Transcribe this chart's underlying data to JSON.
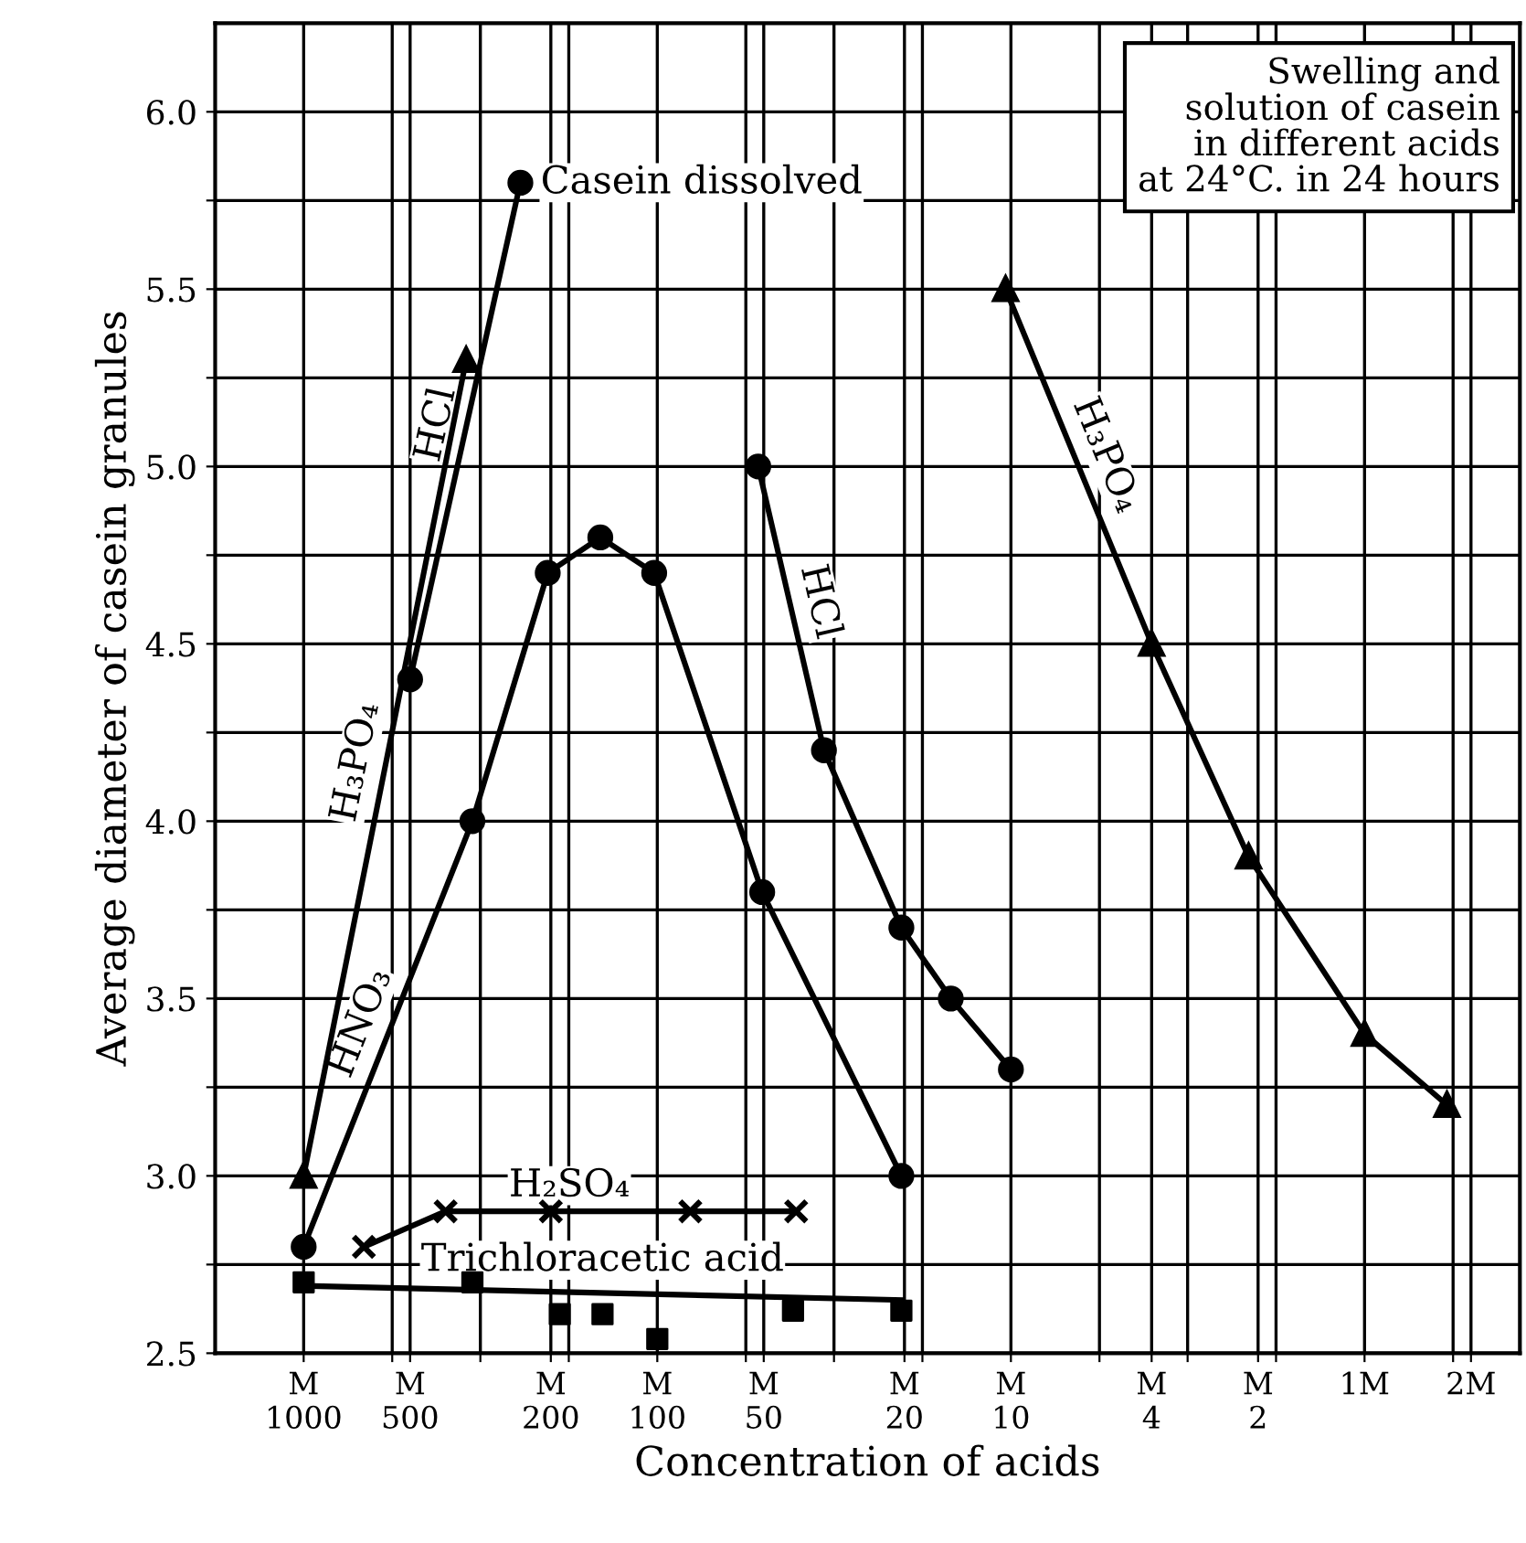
{
  "chart_data": {
    "type": "line",
    "title": "Swelling and\nsolution of casein\nin different acids\nat 24°C. in 24 hours",
    "xlabel": "Concentration of acids",
    "ylabel": "Average diameter of casein granules",
    "log": "x",
    "grid": true,
    "legend": false,
    "xlim": [
      0.000562,
      2.75
    ],
    "ylim": [
      2.5,
      6.25
    ],
    "xticks": [
      {
        "value": 0.001,
        "label": "M\n1000"
      },
      {
        "value": 0.00178,
        "label": null
      },
      {
        "value": 0.002,
        "label": "M\n500"
      },
      {
        "value": 0.00316,
        "label": null
      },
      {
        "value": 0.005,
        "label": "M\n200"
      },
      {
        "value": 0.00562,
        "label": null
      },
      {
        "value": 0.01,
        "label": "M\n100"
      },
      {
        "value": 0.0178,
        "label": null
      },
      {
        "value": 0.02,
        "label": "M\n50"
      },
      {
        "value": 0.0316,
        "label": null
      },
      {
        "value": 0.05,
        "label": "M\n20"
      },
      {
        "value": 0.0562,
        "label": null
      },
      {
        "value": 0.1,
        "label": "M\n10"
      },
      {
        "value": 0.178,
        "label": null
      },
      {
        "value": 0.25,
        "label": "M\n4"
      },
      {
        "value": 0.316,
        "label": null
      },
      {
        "value": 0.5,
        "label": "M\n2"
      },
      {
        "value": 0.562,
        "label": null
      },
      {
        "value": 1,
        "label": "1M"
      },
      {
        "value": 1.78,
        "label": null
      },
      {
        "value": 2,
        "label": "2M"
      }
    ],
    "yticks": [
      {
        "value": 2.5,
        "label": "2.5"
      },
      {
        "value": 2.75,
        "label": null
      },
      {
        "value": 3.0,
        "label": "3.0"
      },
      {
        "value": 3.25,
        "label": null
      },
      {
        "value": 3.5,
        "label": "3.5"
      },
      {
        "value": 3.75,
        "label": null
      },
      {
        "value": 4.0,
        "label": "4.0"
      },
      {
        "value": 4.25,
        "label": null
      },
      {
        "value": 4.5,
        "label": "4.5"
      },
      {
        "value": 4.75,
        "label": null
      },
      {
        "value": 5.0,
        "label": "5.0"
      },
      {
        "value": 5.25,
        "label": null
      },
      {
        "value": 5.5,
        "label": "5.5"
      },
      {
        "value": 5.75,
        "label": null
      },
      {
        "value": 6.0,
        "label": "6.0"
      }
    ],
    "series": [
      {
        "name": "H₃PO₄",
        "color": "#000000",
        "marker": "triangle",
        "x": [
          0.001,
          0.00288
        ],
        "values": [
          3.0,
          5.3
        ]
      },
      {
        "name": "HCl",
        "color": "#000000",
        "marker": "circle",
        "x": [
          0.002,
          0.0041
        ],
        "values": [
          4.4,
          5.8
        ]
      },
      {
        "name": "HNO₃",
        "color": "#000000",
        "marker": "circle",
        "x": [
          0.001,
          0.003,
          0.0049,
          0.0069,
          0.0098,
          0.0198,
          0.049
        ],
        "values": [
          2.8,
          4.0,
          4.7,
          4.8,
          4.7,
          3.8,
          3.0
        ]
      },
      {
        "name": "HCl",
        "color": "#000000",
        "marker": "circle",
        "x": [
          0.0193,
          0.0296,
          0.049,
          0.0676,
          0.1
        ],
        "values": [
          5.0,
          4.2,
          3.7,
          3.5,
          3.3
        ]
      },
      {
        "name": "H₃PO₄",
        "color": "#000000",
        "marker": "triangle",
        "x": [
          0.0966,
          0.25,
          0.47,
          1.0,
          1.71
        ],
        "values": [
          5.5,
          4.5,
          3.9,
          3.4,
          3.2
        ]
      },
      {
        "name": "H₂SO₄",
        "color": "#000000",
        "marker": "cross",
        "x": [
          0.00148,
          0.00252,
          0.005,
          0.0124,
          0.0247
        ],
        "values": [
          2.8,
          2.9,
          2.9,
          2.9,
          2.9
        ]
      },
      {
        "type": "scatter",
        "color": "#000000",
        "marker": "square",
        "x": [
          0.001,
          0.003,
          0.0053,
          0.007,
          0.01,
          0.0242,
          0.049
        ],
        "values": [
          2.7,
          2.7,
          2.61,
          2.61,
          2.54,
          2.62,
          2.62
        ]
      },
      {
        "name": "Trichloracetic acid",
        "type": "line",
        "color": "#000000",
        "marker": "none",
        "x": [
          0.001,
          0.049
        ],
        "values": [
          2.69,
          2.65
        ]
      }
    ],
    "annotations": [
      {
        "text": "Casein dissolved",
        "x": 0.0041,
        "y": 5.8
      }
    ]
  }
}
